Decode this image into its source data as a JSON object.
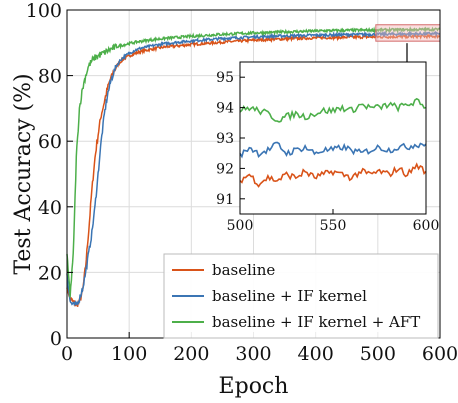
{
  "chart_data": {
    "type": "line",
    "xlabel": "Epoch",
    "ylabel": "Test Accuracy (%)",
    "xlim": [
      0,
      600
    ],
    "ylim": [
      0,
      100
    ],
    "xticks": [
      "0",
      "100",
      "200",
      "300",
      "400",
      "500",
      "600"
    ],
    "yticks": [
      "0",
      "20",
      "40",
      "60",
      "80",
      "100"
    ],
    "grid": true,
    "legend_position": "bottom-right",
    "series": [
      {
        "name": "baseline",
        "color": "#d95319",
        "x": [
          0,
          5,
          10,
          15,
          20,
          25,
          30,
          35,
          40,
          45,
          50,
          55,
          60,
          65,
          70,
          75,
          80,
          85,
          90,
          100,
          110,
          120,
          140,
          160,
          180,
          200,
          250,
          300,
          350,
          400,
          450,
          500,
          550,
          600
        ],
        "y": [
          16,
          12,
          11,
          10,
          11,
          14,
          22,
          33,
          45,
          55,
          62,
          68,
          72,
          76,
          79,
          81,
          83,
          84,
          85,
          86,
          86.8,
          87.4,
          88.2,
          88.8,
          89.1,
          89.5,
          90.2,
          90.8,
          91.2,
          91.5,
          91.7,
          91.8,
          91.9,
          92.0
        ]
      },
      {
        "name": "baseline + IF kernel",
        "color": "#3b75b4",
        "x": [
          0,
          5,
          10,
          15,
          20,
          25,
          30,
          35,
          40,
          45,
          50,
          55,
          60,
          65,
          70,
          75,
          80,
          85,
          90,
          100,
          110,
          120,
          140,
          160,
          180,
          200,
          250,
          300,
          350,
          400,
          450,
          500,
          550,
          600
        ],
        "y": [
          20,
          11,
          10,
          10,
          12,
          15,
          20,
          26,
          32,
          40,
          50,
          60,
          68,
          74,
          78,
          81,
          83,
          84.5,
          85.5,
          86.8,
          87.8,
          88.4,
          89.2,
          89.8,
          90.2,
          90.6,
          91.3,
          91.8,
          92.1,
          92.3,
          92.5,
          92.6,
          92.7,
          92.8
        ]
      },
      {
        "name": "baseline + IF kernel + AFT",
        "color": "#4daf4a",
        "x": [
          0,
          5,
          10,
          15,
          20,
          25,
          30,
          35,
          40,
          45,
          50,
          55,
          60,
          70,
          80,
          90,
          100,
          120,
          140,
          160,
          180,
          200,
          250,
          300,
          350,
          400,
          450,
          500,
          550,
          600
        ],
        "y": [
          25,
          13,
          25,
          55,
          70,
          76,
          80,
          83,
          84.5,
          85.5,
          86,
          86.5,
          87,
          88,
          88.8,
          89.3,
          89.8,
          90.5,
          91,
          91.4,
          91.7,
          92,
          92.6,
          93,
          93.3,
          93.6,
          93.8,
          93.9,
          94.0,
          94.1
        ]
      }
    ],
    "inset": {
      "xlim": [
        500,
        600
      ],
      "ylim": [
        90.5,
        95.5
      ],
      "xticks": [
        "500",
        "550",
        "600"
      ],
      "yticks": [
        "91",
        "92",
        "93",
        "94",
        "95"
      ],
      "zoom_region": {
        "xlim": [
          500,
          600
        ],
        "ylim": [
          90.5,
          95.5
        ]
      },
      "series": [
        {
          "name": "baseline",
          "x": [
            500,
            505,
            510,
            515,
            520,
            525,
            530,
            535,
            540,
            545,
            550,
            555,
            560,
            565,
            570,
            575,
            580,
            585,
            590,
            595,
            600
          ],
          "y": [
            91.6,
            91.8,
            91.5,
            91.7,
            91.6,
            91.8,
            91.7,
            91.9,
            91.7,
            91.8,
            91.9,
            91.8,
            91.7,
            91.9,
            91.8,
            91.9,
            91.8,
            92.0,
            91.8,
            92.1,
            91.9
          ]
        },
        {
          "name": "baseline + IF kernel",
          "x": [
            500,
            505,
            510,
            515,
            520,
            525,
            530,
            535,
            540,
            545,
            550,
            555,
            560,
            565,
            570,
            575,
            580,
            585,
            590,
            595,
            600
          ],
          "y": [
            92.4,
            92.7,
            92.5,
            92.6,
            92.8,
            92.5,
            92.6,
            92.7,
            92.5,
            92.6,
            92.6,
            92.7,
            92.6,
            92.5,
            92.6,
            92.7,
            92.6,
            92.7,
            92.7,
            92.8,
            92.8
          ]
        },
        {
          "name": "baseline + IF kernel + AFT",
          "x": [
            500,
            505,
            510,
            515,
            520,
            525,
            530,
            535,
            540,
            545,
            550,
            555,
            560,
            565,
            570,
            575,
            580,
            585,
            590,
            595,
            600
          ],
          "y": [
            93.9,
            94.0,
            93.9,
            93.8,
            93.6,
            93.7,
            93.8,
            93.7,
            93.8,
            93.9,
            93.9,
            94.0,
            93.9,
            94.1,
            94.0,
            94.0,
            94.1,
            94.0,
            94.1,
            94.2,
            94.0
          ]
        }
      ]
    }
  }
}
